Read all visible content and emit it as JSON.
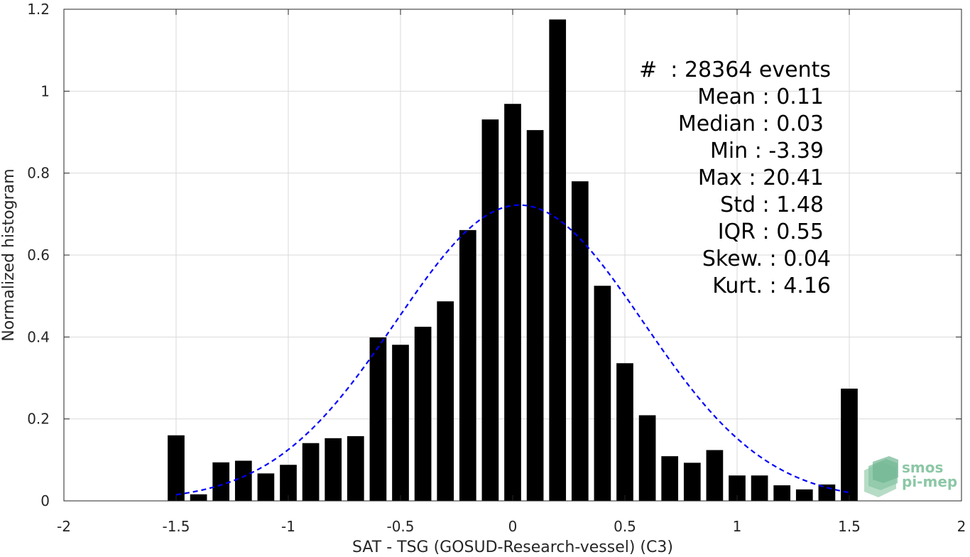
{
  "chart_data": {
    "type": "bar",
    "xlabel": "SAT - TSG (GOSUD-Research-vessel) (C3)",
    "ylabel": "Normalized histogram",
    "xlim": [
      -2,
      2
    ],
    "ylim": [
      0,
      1.2
    ],
    "grid": true,
    "x_ticks": [
      -2,
      -1.5,
      -1,
      -0.5,
      0,
      0.5,
      1,
      1.5,
      2
    ],
    "x_tick_labels": [
      "-2",
      "-1.5",
      "-1",
      "-0.5",
      "0",
      "0.5",
      "1",
      "1.5",
      "2"
    ],
    "y_ticks": [
      0,
      0.2,
      0.4,
      0.6,
      0.8,
      1,
      1.2
    ],
    "y_tick_labels": [
      "0",
      "0.2",
      "0.4",
      "0.6",
      "0.8",
      "1",
      "1.2"
    ],
    "bar_color": "#000000",
    "bin_width": 0.1,
    "bins": [
      {
        "x": -1.5,
        "y": 0.16
      },
      {
        "x": -1.4,
        "y": 0.016
      },
      {
        "x": -1.3,
        "y": 0.094
      },
      {
        "x": -1.2,
        "y": 0.098
      },
      {
        "x": -1.1,
        "y": 0.067
      },
      {
        "x": -1.0,
        "y": 0.088
      },
      {
        "x": -0.9,
        "y": 0.141
      },
      {
        "x": -0.8,
        "y": 0.153
      },
      {
        "x": -0.7,
        "y": 0.158
      },
      {
        "x": -0.6,
        "y": 0.399
      },
      {
        "x": -0.5,
        "y": 0.381
      },
      {
        "x": -0.4,
        "y": 0.425
      },
      {
        "x": -0.3,
        "y": 0.487
      },
      {
        "x": -0.2,
        "y": 0.661
      },
      {
        "x": -0.1,
        "y": 0.931
      },
      {
        "x": 0.0,
        "y": 0.969
      },
      {
        "x": 0.1,
        "y": 0.905
      },
      {
        "x": 0.2,
        "y": 1.175
      },
      {
        "x": 0.3,
        "y": 0.78
      },
      {
        "x": 0.4,
        "y": 0.525
      },
      {
        "x": 0.5,
        "y": 0.336
      },
      {
        "x": 0.6,
        "y": 0.209
      },
      {
        "x": 0.7,
        "y": 0.109
      },
      {
        "x": 0.8,
        "y": 0.093
      },
      {
        "x": 0.9,
        "y": 0.124
      },
      {
        "x": 1.0,
        "y": 0.062
      },
      {
        "x": 1.1,
        "y": 0.062
      },
      {
        "x": 1.2,
        "y": 0.038
      },
      {
        "x": 1.3,
        "y": 0.028
      },
      {
        "x": 1.4,
        "y": 0.04
      },
      {
        "x": 1.5,
        "y": 0.274
      }
    ],
    "fit_curve": {
      "style": "dashed",
      "color": "#0000ff",
      "x_range": [
        -1.5,
        1.5
      ],
      "mean": 0.03,
      "sigma": 0.55,
      "peak": 0.722
    },
    "annotations": [
      "#  : 28364 events",
      "Mean : 0.11",
      "Median : 0.03",
      "Min : -3.39",
      "Max : 20.41",
      "Std : 1.48",
      "IQR : 0.55",
      "Skew. : 0.04",
      "Kurt. : 4.16"
    ]
  },
  "logo": {
    "line1": "smos",
    "line2": "pi-mep",
    "color": "#8cc7a6"
  }
}
